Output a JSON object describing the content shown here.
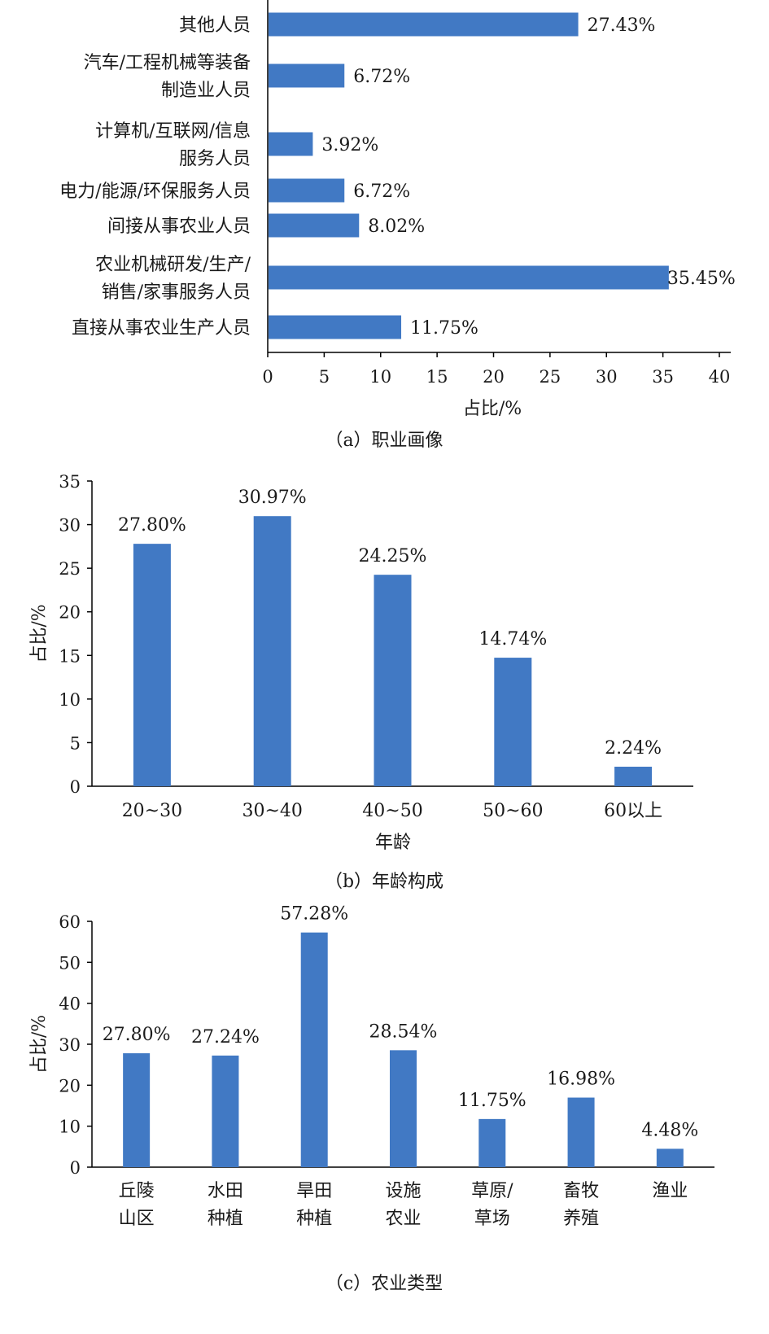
{
  "chart_data": [
    {
      "type": "bar",
      "orientation": "horizontal",
      "caption": "（a）职业画像",
      "xlabel": "占比/%",
      "ylabel": "",
      "xlim": [
        0,
        40
      ],
      "ticks": [
        "0",
        "5",
        "10",
        "15",
        "20",
        "25",
        "30",
        "35",
        "40"
      ],
      "grid": false,
      "categories": [
        [
          "其他人员"
        ],
        [
          "汽车/工程机械等装备",
          "制造业人员"
        ],
        [
          "计算机/互联网/信息",
          "服务人员"
        ],
        [
          "电力/能源/环保服务人员"
        ],
        [
          "间接从事农业人员"
        ],
        [
          "农业机械研发/生产/",
          "销售/家事服务人员"
        ],
        [
          "直接从事农业生产人员"
        ]
      ],
      "values": [
        27.43,
        6.72,
        3.92,
        6.72,
        8.02,
        35.45,
        11.75
      ],
      "value_labels": [
        "27.43%",
        "6.72%",
        "3.92%",
        "6.72%",
        "8.02%",
        "35.45%",
        "11.75%"
      ],
      "bar_color": "#4179c4"
    },
    {
      "type": "bar",
      "orientation": "vertical",
      "caption": "（b）年龄构成",
      "xlabel": "年龄",
      "ylabel": "占比/%",
      "ylim": [
        0,
        35
      ],
      "ticks": [
        "0",
        "5",
        "10",
        "15",
        "20",
        "25",
        "30",
        "35"
      ],
      "grid": false,
      "categories": [
        [
          "20~30"
        ],
        [
          "30~40"
        ],
        [
          "40~50"
        ],
        [
          "50~60"
        ],
        [
          "60以上"
        ]
      ],
      "values": [
        27.8,
        30.97,
        24.25,
        14.74,
        2.24
      ],
      "value_labels": [
        "27.80%",
        "30.97%",
        "24.25%",
        "14.74%",
        "2.24%"
      ],
      "bar_color": "#4179c4"
    },
    {
      "type": "bar",
      "orientation": "vertical",
      "caption": "（c）农业类型",
      "xlabel": "",
      "ylabel": "占比/%",
      "ylim": [
        0,
        60
      ],
      "ticks": [
        "0",
        "10",
        "20",
        "30",
        "40",
        "50",
        "60"
      ],
      "grid": false,
      "categories": [
        [
          "丘陵",
          "山区"
        ],
        [
          "水田",
          "种植"
        ],
        [
          "旱田",
          "种植"
        ],
        [
          "设施",
          "农业"
        ],
        [
          "草原/",
          "草场"
        ],
        [
          "畜牧",
          "养殖"
        ],
        [
          "渔业"
        ]
      ],
      "values": [
        27.8,
        27.24,
        57.28,
        28.54,
        11.75,
        16.98,
        4.48
      ],
      "value_labels": [
        "27.80%",
        "27.24%",
        "57.28%",
        "28.54%",
        "11.75%",
        "16.98%",
        "4.48%"
      ],
      "bar_color": "#4179c4"
    }
  ]
}
